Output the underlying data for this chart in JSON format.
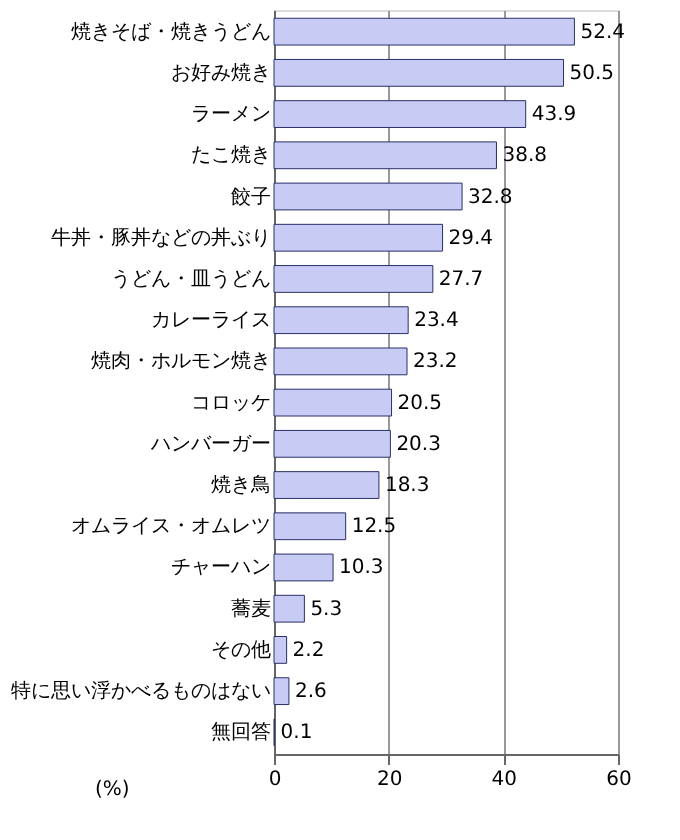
{
  "chart_data": {
    "type": "bar",
    "orientation": "horizontal",
    "xlabel": "(%)",
    "categories": [
      "焼きそば・焼きうどん",
      "お好み焼き",
      "ラーメン",
      "たこ焼き",
      "餃子",
      "牛丼・豚丼などの丼ぶり",
      "うどん・皿うどん",
      "カレーライス",
      "焼肉・ホルモン焼き",
      "コロッケ",
      "ハンバーガー",
      "焼き鳥",
      "オムライス・オムレツ",
      "チャーハン",
      "蕎麦",
      "その他",
      "特に思い浮かべるものはない",
      "無回答"
    ],
    "values": [
      52.4,
      50.5,
      43.9,
      38.8,
      32.8,
      29.4,
      27.7,
      23.4,
      23.2,
      20.5,
      20.3,
      18.3,
      12.5,
      10.3,
      5.3,
      2.2,
      2.6,
      0.1
    ],
    "color": "#c8ccf4",
    "xlim": [
      0,
      60
    ],
    "xticks": [
      0,
      20,
      40,
      60
    ],
    "grid": "x",
    "data_labels": true
  }
}
